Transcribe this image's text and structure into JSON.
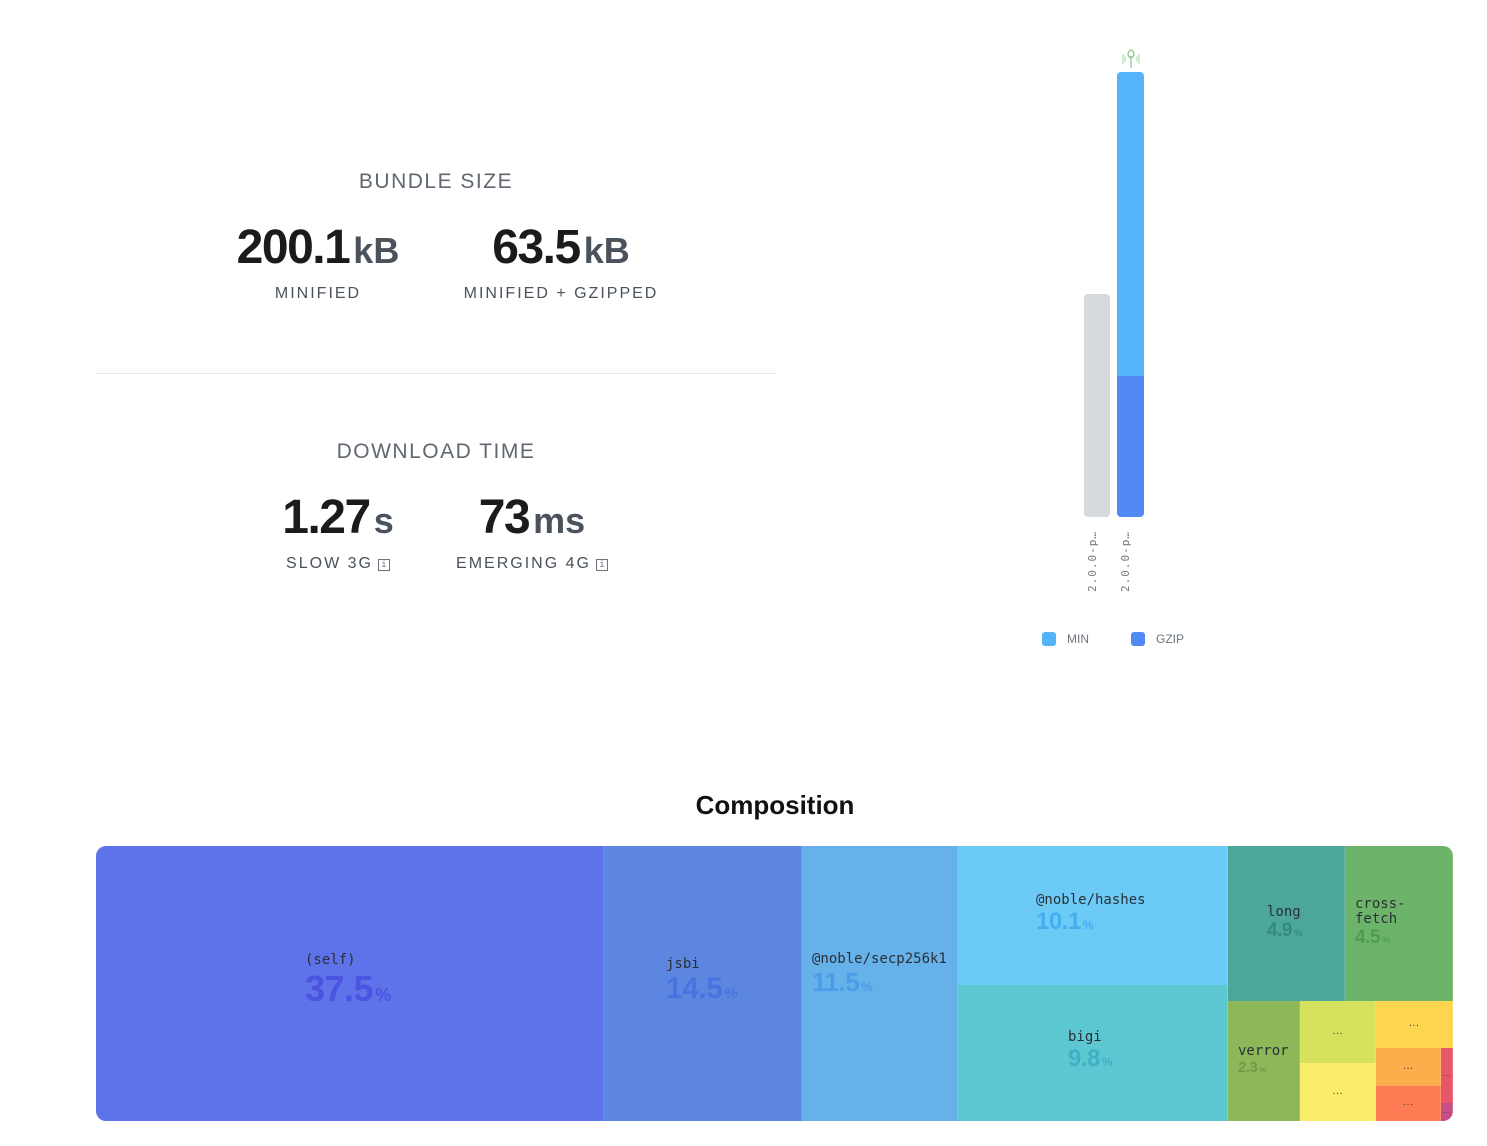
{
  "bundle_size": {
    "title": "BUNDLE SIZE",
    "minified": {
      "value": "200.1",
      "unit": "kB",
      "label": "MINIFIED"
    },
    "gzipped": {
      "value": "63.5",
      "unit": "kB",
      "label": "MINIFIED + GZIPPED"
    }
  },
  "download_time": {
    "title": "DOWNLOAD TIME",
    "slow3g": {
      "value": "1.27",
      "unit": "s",
      "label": "SLOW 3G",
      "info": "i"
    },
    "emerging4g": {
      "value": "73",
      "unit": "ms",
      "label": "EMERGING 4G",
      "info": "i"
    }
  },
  "chart_data": {
    "type": "bar",
    "categories": [
      "2.0.0-p…",
      "2.0.0-p…"
    ],
    "stacked": true,
    "series": [
      {
        "name": "MIN",
        "color": "#55b4f9"
      },
      {
        "name": "GZIP",
        "color": "#528af5"
      }
    ],
    "bars": [
      {
        "label": "2.0.0-p…",
        "min_fraction": 0.5,
        "gzip_fraction": 0,
        "color": "#d7dadc"
      },
      {
        "label": "2.0.0-p…",
        "min_fraction": 1.0,
        "gzip_fraction": 0.317,
        "highlight": true
      }
    ],
    "legend_position": "bottom"
  },
  "legend": {
    "min": "MIN",
    "gzip": "GZIP"
  },
  "composition": {
    "title": "Composition",
    "cells": [
      {
        "name": "(self)",
        "pct": "37.5",
        "color": "#5e73ea",
        "text_color": "#4a54e0"
      },
      {
        "name": "jsbi",
        "pct": "14.5",
        "color": "#5c86e0",
        "text_color": "#4a73e0"
      },
      {
        "name": "@noble/secp256k1",
        "pct": "11.5",
        "color": "#66b1ea",
        "text_color": "#4a9ce8"
      },
      {
        "name": "@noble/hashes",
        "pct": "10.1",
        "color": "#6ccbf6",
        "text_color": "#45aef0"
      },
      {
        "name": "bigi",
        "pct": "9.8",
        "color": "#5ec8d2",
        "text_color": "#3fb1c4"
      },
      {
        "name": "long",
        "pct": "4.9",
        "color": "#4ca79a",
        "text_color": "#338a80"
      },
      {
        "name": "cross-fetch",
        "pct": "4.5",
        "color": "#6db46b",
        "text_color": "#509a51"
      },
      {
        "name": "verror",
        "pct": "2.3",
        "color": "#8cb85a",
        "text_color": "#6f9b44"
      },
      {
        "name": "…",
        "color": "#d6e15e"
      },
      {
        "name": "…",
        "color": "#fdd54f"
      },
      {
        "name": "…",
        "color": "#fbec6a"
      },
      {
        "name": "…",
        "color": "#fdae4c"
      },
      {
        "name": "…",
        "color": "#fe7c54"
      },
      {
        "name": "…",
        "color": "#e8566a"
      },
      {
        "name": "…",
        "color": "#c64f86"
      }
    ],
    "pct_sign": "%"
  }
}
